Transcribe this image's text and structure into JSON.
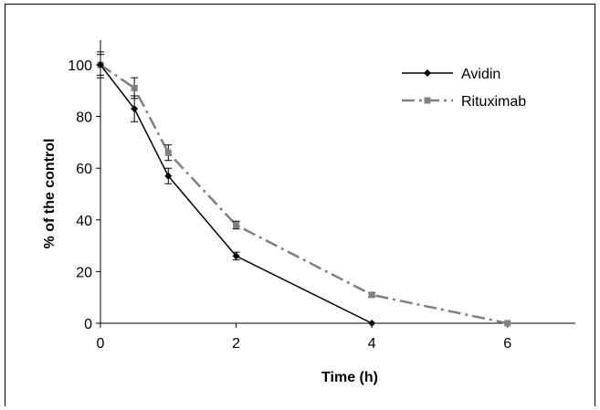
{
  "chart_data": {
    "type": "line",
    "xlabel": "Time (h)",
    "ylabel": "% of the control",
    "xlim": [
      0,
      7
    ],
    "ylim": [
      0,
      100
    ],
    "xticks": [
      0,
      2,
      4,
      6
    ],
    "yticks": [
      0,
      20,
      40,
      60,
      80,
      100
    ],
    "grid": false,
    "legend_position": "top-right",
    "series": [
      {
        "name": "Avidin",
        "color": "#000000",
        "line_style": "solid",
        "marker": "diamond",
        "x": [
          0,
          0.5,
          1,
          2,
          4
        ],
        "y": [
          100,
          83,
          57,
          26,
          0
        ],
        "error": [
          5,
          5,
          3,
          1.5,
          0
        ]
      },
      {
        "name": "Rituximab",
        "color": "#808080",
        "line_style": "dash-dot",
        "marker": "square",
        "x": [
          0,
          0.5,
          1,
          2,
          4,
          6
        ],
        "y": [
          100,
          91,
          66,
          38,
          11,
          0
        ],
        "error": [
          4,
          4,
          3,
          1.5,
          0.8,
          0
        ]
      }
    ]
  }
}
